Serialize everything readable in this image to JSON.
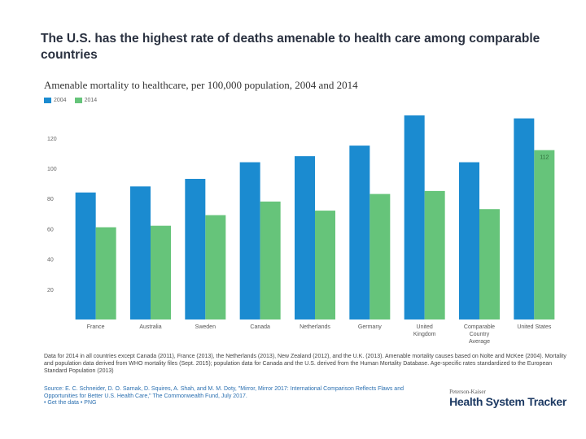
{
  "header": {
    "title": "The U.S. has the highest rate of deaths amenable to health care among comparable countries"
  },
  "chart_data": {
    "type": "bar",
    "title": "Amenable mortality to healthcare, per 100,000 population, 2004 and 2014",
    "categories": [
      "France",
      "Australia",
      "Sweden",
      "Canada",
      "Netherlands",
      "Germany",
      "United Kingdom",
      "Comparable Country Average",
      "United States"
    ],
    "category_lines": [
      [
        "France"
      ],
      [
        "Australia"
      ],
      [
        "Sweden"
      ],
      [
        "Canada"
      ],
      [
        "Netherlands"
      ],
      [
        "Germany"
      ],
      [
        "United",
        "Kingdom"
      ],
      [
        "Comparable",
        "Country",
        "Average"
      ],
      [
        "United States"
      ]
    ],
    "series": [
      {
        "name": "2004",
        "color": "#1b8bd0",
        "values": [
          84,
          88,
          93,
          104,
          108,
          115,
          135,
          104,
          133
        ]
      },
      {
        "name": "2014",
        "color": "#66c47a",
        "values": [
          61,
          62,
          69,
          78,
          72,
          83,
          85,
          73,
          112
        ]
      }
    ],
    "annotation": {
      "category": "United States",
      "series": "2014",
      "label": "112"
    },
    "y_ticks": [
      20,
      40,
      60,
      80,
      100,
      120
    ],
    "ylim": [
      0,
      140
    ],
    "grid": false,
    "legend_position": "top-left"
  },
  "footer": {
    "notes": "Data for 2014 in all countries except Canada (2011), France (2013), the Netherlands (2013), New Zealand (2012), and the U.K. (2013). Amenable mortality causes based on Nolte and McKee (2004). Mortality and population data derived from WHO mortality files (Sept. 2015); population data for Canada and the U.S. derived from the Human Mortality Database. Age-specific rates standardized to the European Standard Population (2013)",
    "source_label": "Source:",
    "source_text": "E. C. Schneider, D. O. Sarnak, D. Squires, A. Shah, and M. M. Doty, \"Mirror, Mirror 2017: International Comparison Reflects Flaws and Opportunities for Better U.S. Health Care,\" The Commonwealth Fund, July 2017.",
    "get_data": "• Get the data",
    "png": "• PNG"
  },
  "brand": {
    "top": "Peterson-Kaiser",
    "main": "Health System Tracker"
  }
}
